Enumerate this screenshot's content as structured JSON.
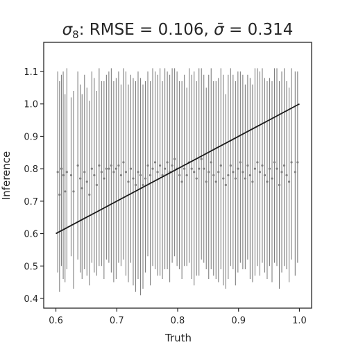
{
  "chart_data": {
    "type": "scatter",
    "title": {
      "symbol": "σ",
      "subscript": "8",
      "rest": ": RMSE = 0.106, ",
      "sigma_bar": "σ̄",
      "tail": " = 0.314"
    },
    "xlabel": "Truth",
    "ylabel": "Inference",
    "xlim": [
      0.58,
      1.02
    ],
    "ylim": [
      0.37,
      1.19
    ],
    "xticks": [
      "0.6",
      "0.7",
      "0.8",
      "0.9",
      "1.0"
    ],
    "yticks": [
      "0.4",
      "0.5",
      "0.6",
      "0.7",
      "0.8",
      "0.9",
      "1.0",
      "1.1"
    ],
    "grid": false,
    "reference_line": {
      "x": [
        0.6,
        1.0
      ],
      "y": [
        0.6,
        1.0
      ],
      "color": "#1a1a1a"
    },
    "series": [
      {
        "color": "#7f7f7f",
        "points": [
          [
            0.603,
            0.79,
            0.48,
            1.1
          ],
          [
            0.606,
            0.72,
            0.42,
            1.07
          ],
          [
            0.609,
            0.8,
            0.5,
            1.09
          ],
          [
            0.612,
            0.78,
            0.46,
            1.1
          ],
          [
            0.615,
            0.73,
            0.45,
            1.03
          ],
          [
            0.618,
            0.79,
            0.49,
            1.11
          ],
          [
            0.625,
            0.78,
            0.53,
            1.02
          ],
          [
            0.629,
            0.73,
            0.43,
            1.04
          ],
          [
            0.636,
            0.81,
            0.52,
            1.1
          ],
          [
            0.64,
            0.77,
            0.48,
            1.06
          ],
          [
            0.643,
            0.74,
            0.46,
            1.03
          ],
          [
            0.647,
            0.79,
            0.49,
            1.09
          ],
          [
            0.651,
            0.76,
            0.47,
            1.05
          ],
          [
            0.655,
            0.72,
            0.44,
            1.01
          ],
          [
            0.659,
            0.8,
            0.51,
            1.1
          ],
          [
            0.663,
            0.78,
            0.48,
            1.08
          ],
          [
            0.667,
            0.75,
            0.47,
            1.04
          ],
          [
            0.671,
            0.81,
            0.5,
            1.11
          ],
          [
            0.675,
            0.79,
            0.5,
            1.07
          ],
          [
            0.679,
            0.77,
            0.46,
            1.07
          ],
          [
            0.683,
            0.8,
            0.52,
            1.09
          ],
          [
            0.687,
            0.8,
            0.51,
            1.1
          ],
          [
            0.691,
            0.81,
            0.48,
            1.11
          ],
          [
            0.695,
            0.79,
            0.45,
            1.07
          ],
          [
            0.699,
            0.8,
            0.46,
            1.08
          ],
          [
            0.703,
            0.81,
            0.51,
            1.1
          ],
          [
            0.707,
            0.78,
            0.5,
            1.06
          ],
          [
            0.711,
            0.82,
            0.52,
            1.11
          ],
          [
            0.715,
            0.79,
            0.47,
            1.1
          ],
          [
            0.719,
            0.76,
            0.45,
            1.06
          ],
          [
            0.723,
            0.8,
            0.51,
            1.09
          ],
          [
            0.727,
            0.77,
            0.44,
            1.08
          ],
          [
            0.731,
            0.75,
            0.42,
            1.07
          ],
          [
            0.735,
            0.79,
            0.46,
            1.1
          ],
          [
            0.739,
            0.78,
            0.41,
            1.08
          ],
          [
            0.743,
            0.75,
            0.43,
            1.06
          ],
          [
            0.747,
            0.77,
            0.48,
            1.07
          ],
          [
            0.751,
            0.81,
            0.53,
            1.1
          ],
          [
            0.755,
            0.78,
            0.44,
            1.07
          ],
          [
            0.759,
            0.8,
            0.5,
            1.11
          ],
          [
            0.763,
            0.82,
            0.49,
            1.1
          ],
          [
            0.767,
            0.79,
            0.47,
            1.09
          ],
          [
            0.771,
            0.81,
            0.47,
            1.11
          ],
          [
            0.775,
            0.78,
            0.46,
            1.07
          ],
          [
            0.779,
            0.8,
            0.49,
            1.11
          ],
          [
            0.783,
            0.82,
            0.49,
            1.1
          ],
          [
            0.787,
            0.79,
            0.45,
            1.09
          ],
          [
            0.791,
            0.81,
            0.51,
            1.11
          ],
          [
            0.795,
            0.83,
            0.53,
            1.11
          ],
          [
            0.799,
            0.8,
            0.5,
            1.1
          ],
          [
            0.803,
            0.78,
            0.49,
            1.07
          ],
          [
            0.807,
            0.76,
            0.46,
            1.07
          ],
          [
            0.811,
            0.8,
            0.5,
            1.09
          ],
          [
            0.815,
            0.78,
            0.5,
            1.05
          ],
          [
            0.819,
            0.82,
            0.51,
            1.11
          ],
          [
            0.823,
            0.8,
            0.46,
            1.09
          ],
          [
            0.827,
            0.79,
            0.44,
            1.1
          ],
          [
            0.831,
            0.77,
            0.47,
            1.07
          ],
          [
            0.835,
            0.8,
            0.47,
            1.11
          ],
          [
            0.839,
            0.83,
            0.52,
            1.11
          ],
          [
            0.843,
            0.8,
            0.51,
            1.09
          ],
          [
            0.847,
            0.76,
            0.49,
            1.05
          ],
          [
            0.851,
            0.79,
            0.46,
            1.09
          ],
          [
            0.855,
            0.82,
            0.49,
            1.11
          ],
          [
            0.859,
            0.78,
            0.47,
            1.07
          ],
          [
            0.863,
            0.76,
            0.46,
            1.07
          ],
          [
            0.867,
            0.79,
            0.45,
            1.08
          ],
          [
            0.871,
            0.81,
            0.49,
            1.11
          ],
          [
            0.875,
            0.77,
            0.44,
            1.09
          ],
          [
            0.879,
            0.75,
            0.43,
            1.03
          ],
          [
            0.883,
            0.78,
            0.46,
            1.09
          ],
          [
            0.887,
            0.81,
            0.5,
            1.11
          ],
          [
            0.891,
            0.79,
            0.49,
            1.09
          ],
          [
            0.895,
            0.77,
            0.44,
            1.07
          ],
          [
            0.899,
            0.8,
            0.48,
            1.1
          ],
          [
            0.903,
            0.82,
            0.51,
            1.1
          ],
          [
            0.907,
            0.79,
            0.49,
            1.09
          ],
          [
            0.911,
            0.77,
            0.49,
            1.06
          ],
          [
            0.915,
            0.81,
            0.52,
            1.09
          ],
          [
            0.919,
            0.78,
            0.46,
            1.08
          ],
          [
            0.923,
            0.76,
            0.45,
            1.06
          ],
          [
            0.927,
            0.8,
            0.47,
            1.11
          ],
          [
            0.931,
            0.82,
            0.5,
            1.11
          ],
          [
            0.935,
            0.79,
            0.47,
            1.1
          ],
          [
            0.939,
            0.81,
            0.51,
            1.11
          ],
          [
            0.943,
            0.78,
            0.48,
            1.08
          ],
          [
            0.947,
            0.76,
            0.46,
            1.07
          ],
          [
            0.951,
            0.8,
            0.5,
            1.08
          ],
          [
            0.955,
            0.77,
            0.45,
            1.07
          ],
          [
            0.959,
            0.82,
            0.51,
            1.11
          ],
          [
            0.963,
            0.8,
            0.5,
            1.11
          ],
          [
            0.967,
            0.75,
            0.43,
            1.07
          ],
          [
            0.971,
            0.79,
            0.48,
            1.1
          ],
          [
            0.975,
            0.81,
            0.5,
            1.11
          ],
          [
            0.979,
            0.78,
            0.49,
            1.07
          ],
          [
            0.983,
            0.76,
            0.45,
            1.05
          ],
          [
            0.987,
            0.82,
            0.52,
            1.11
          ],
          [
            0.993,
            0.79,
            0.47,
            1.1
          ],
          [
            0.997,
            0.82,
            0.51,
            1.1
          ]
        ]
      }
    ]
  }
}
